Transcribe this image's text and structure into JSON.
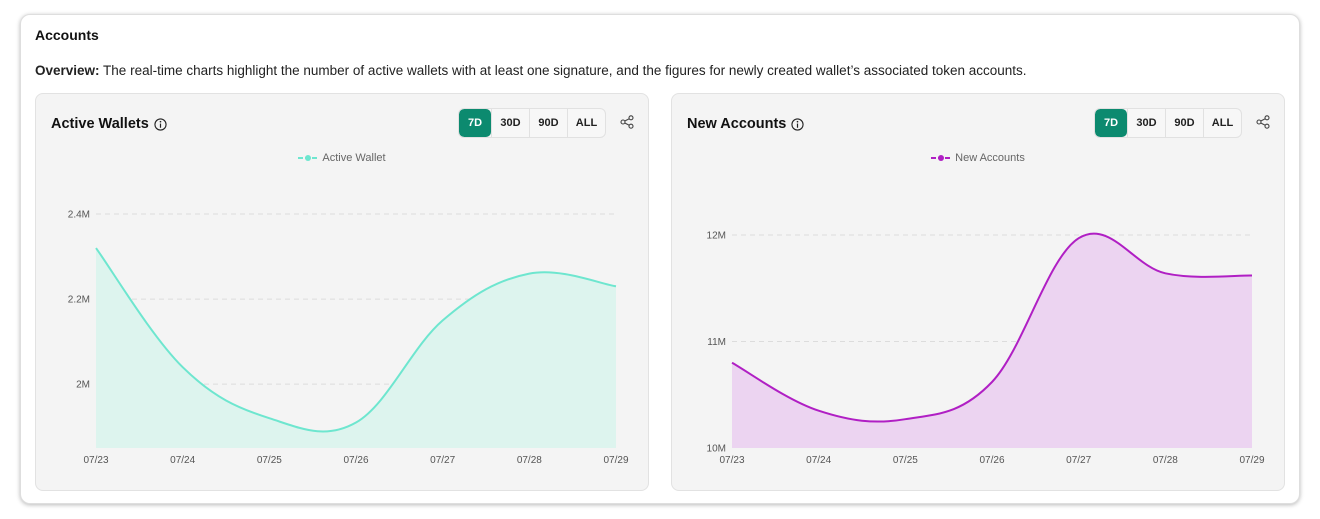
{
  "section": {
    "title": "Accounts",
    "overview_label": "Overview:",
    "overview_text": " The real-time charts highlight the number of active wallets with at least one signature, and the figures for newly created wallet’s associated token accounts."
  },
  "cards": [
    {
      "title": "Active Wallets",
      "ranges": [
        "7D",
        "30D",
        "90D",
        "ALL"
      ],
      "active_range": "7D",
      "legend": "Active Wallet",
      "color": "#6ee6cf",
      "fill": "#ddf4ee"
    },
    {
      "title": "New Accounts",
      "ranges": [
        "7D",
        "30D",
        "90D",
        "ALL"
      ],
      "active_range": "7D",
      "legend": "New Accounts",
      "color": "#b01fc4",
      "fill": "#ecd4f1"
    }
  ],
  "accent_color": "#0c8a6f",
  "chart_data": [
    {
      "type": "area",
      "title": "",
      "x": [
        "07/23",
        "07/24",
        "07/25",
        "07/26",
        "07/27",
        "07/28",
        "07/29"
      ],
      "series": [
        {
          "name": "Active Wallet",
          "values": [
            2.32,
            2.04,
            1.92,
            1.91,
            2.15,
            2.26,
            2.23
          ]
        }
      ],
      "yticks": [
        "2M",
        "2.2M",
        "2.4M"
      ],
      "ytick_values": [
        2.0,
        2.2,
        2.4
      ],
      "ylim": [
        1.85,
        2.4
      ],
      "unit": "M",
      "grid": true,
      "legend_position": "top"
    },
    {
      "type": "area",
      "title": "",
      "x": [
        "07/23",
        "07/24",
        "07/25",
        "07/26",
        "07/27",
        "07/28",
        "07/29"
      ],
      "series": [
        {
          "name": "New Accounts",
          "values": [
            10.8,
            10.35,
            10.27,
            10.62,
            11.97,
            11.64,
            11.62
          ]
        }
      ],
      "yticks": [
        "10M",
        "11M",
        "12M"
      ],
      "ytick_values": [
        10,
        11,
        12
      ],
      "ylim": [
        10,
        12
      ],
      "unit": "M",
      "grid": true,
      "legend_position": "top"
    }
  ]
}
